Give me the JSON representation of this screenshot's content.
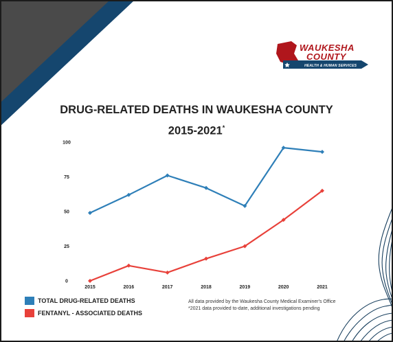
{
  "logo": {
    "line1": "WAUKESHA",
    "line2": "COUNTY",
    "sub": "HEALTH & HUMAN SERVICES"
  },
  "colors": {
    "total": "#2e7fb8",
    "fentanyl": "#e8413a",
    "navy": "#15466e",
    "gray": "#4a4a4a",
    "logo_red": "#b0161c"
  },
  "chart_data": {
    "type": "line",
    "title": "DRUG-RELATED DEATHS IN WAUKESHA COUNTY",
    "subtitle": "2015-2021",
    "subtitle_mark": "*",
    "categories": [
      "2015",
      "2016",
      "2017",
      "2018",
      "2019",
      "2020",
      "2021"
    ],
    "ylim": [
      0,
      100
    ],
    "yticks": [
      0,
      25,
      50,
      75,
      100
    ],
    "grid": false,
    "legend_position": "bottom-left",
    "series": [
      {
        "name": "TOTAL DRUG-RELATED DEATHS",
        "color": "#2e7fb8",
        "values": [
          49,
          62,
          76,
          67,
          54,
          96,
          93
        ]
      },
      {
        "name": "FENTANYL - ASSOCIATED DEATHS",
        "color": "#e8413a",
        "values": [
          0,
          11,
          6,
          16,
          25,
          44,
          65
        ]
      }
    ],
    "notes": [
      "All data provided by the Waukesha County Medical Examiner's Office",
      "*2021 data provided to-date, additional investigations pending"
    ]
  }
}
